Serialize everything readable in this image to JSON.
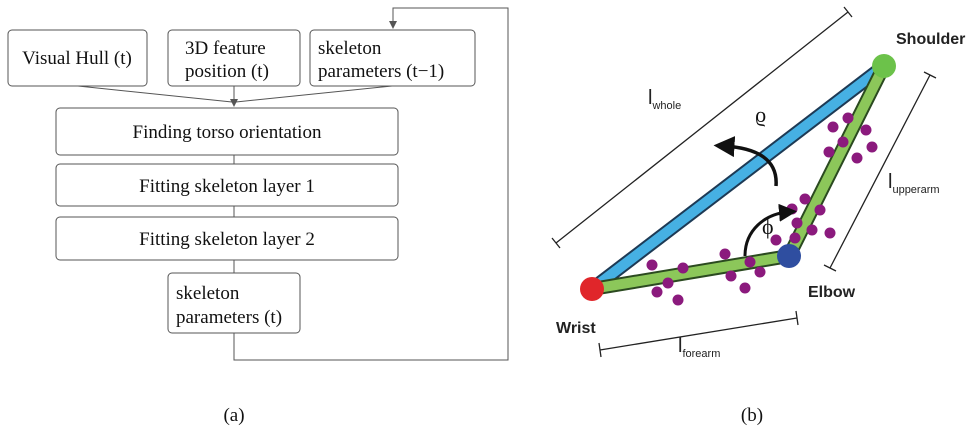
{
  "panel_a": {
    "inputs": [
      {
        "lines": [
          "Visual Hull (t)"
        ]
      },
      {
        "lines": [
          "3D feature",
          "position (t)"
        ]
      },
      {
        "lines": [
          "skeleton",
          "parameters (t−1)"
        ]
      }
    ],
    "steps": [
      "Finding torso orientation",
      "Fitting skeleton layer 1",
      "Fitting skeleton layer 2"
    ],
    "output": {
      "lines": [
        "skeleton",
        "parameters (t)"
      ]
    },
    "caption": "(a)"
  },
  "panel_b": {
    "joints": {
      "shoulder": "Shoulder",
      "elbow": "Elbow",
      "wrist": "Wrist"
    },
    "lengths": {
      "whole": {
        "symbol": "l",
        "sub": "whole"
      },
      "upperarm": {
        "symbol": "l",
        "sub": "upperarm"
      },
      "forearm": {
        "symbol": "l",
        "sub": "forearm"
      }
    },
    "angles": {
      "rho": "ϱ",
      "phi": "ϕ"
    },
    "caption": "(b)"
  }
}
